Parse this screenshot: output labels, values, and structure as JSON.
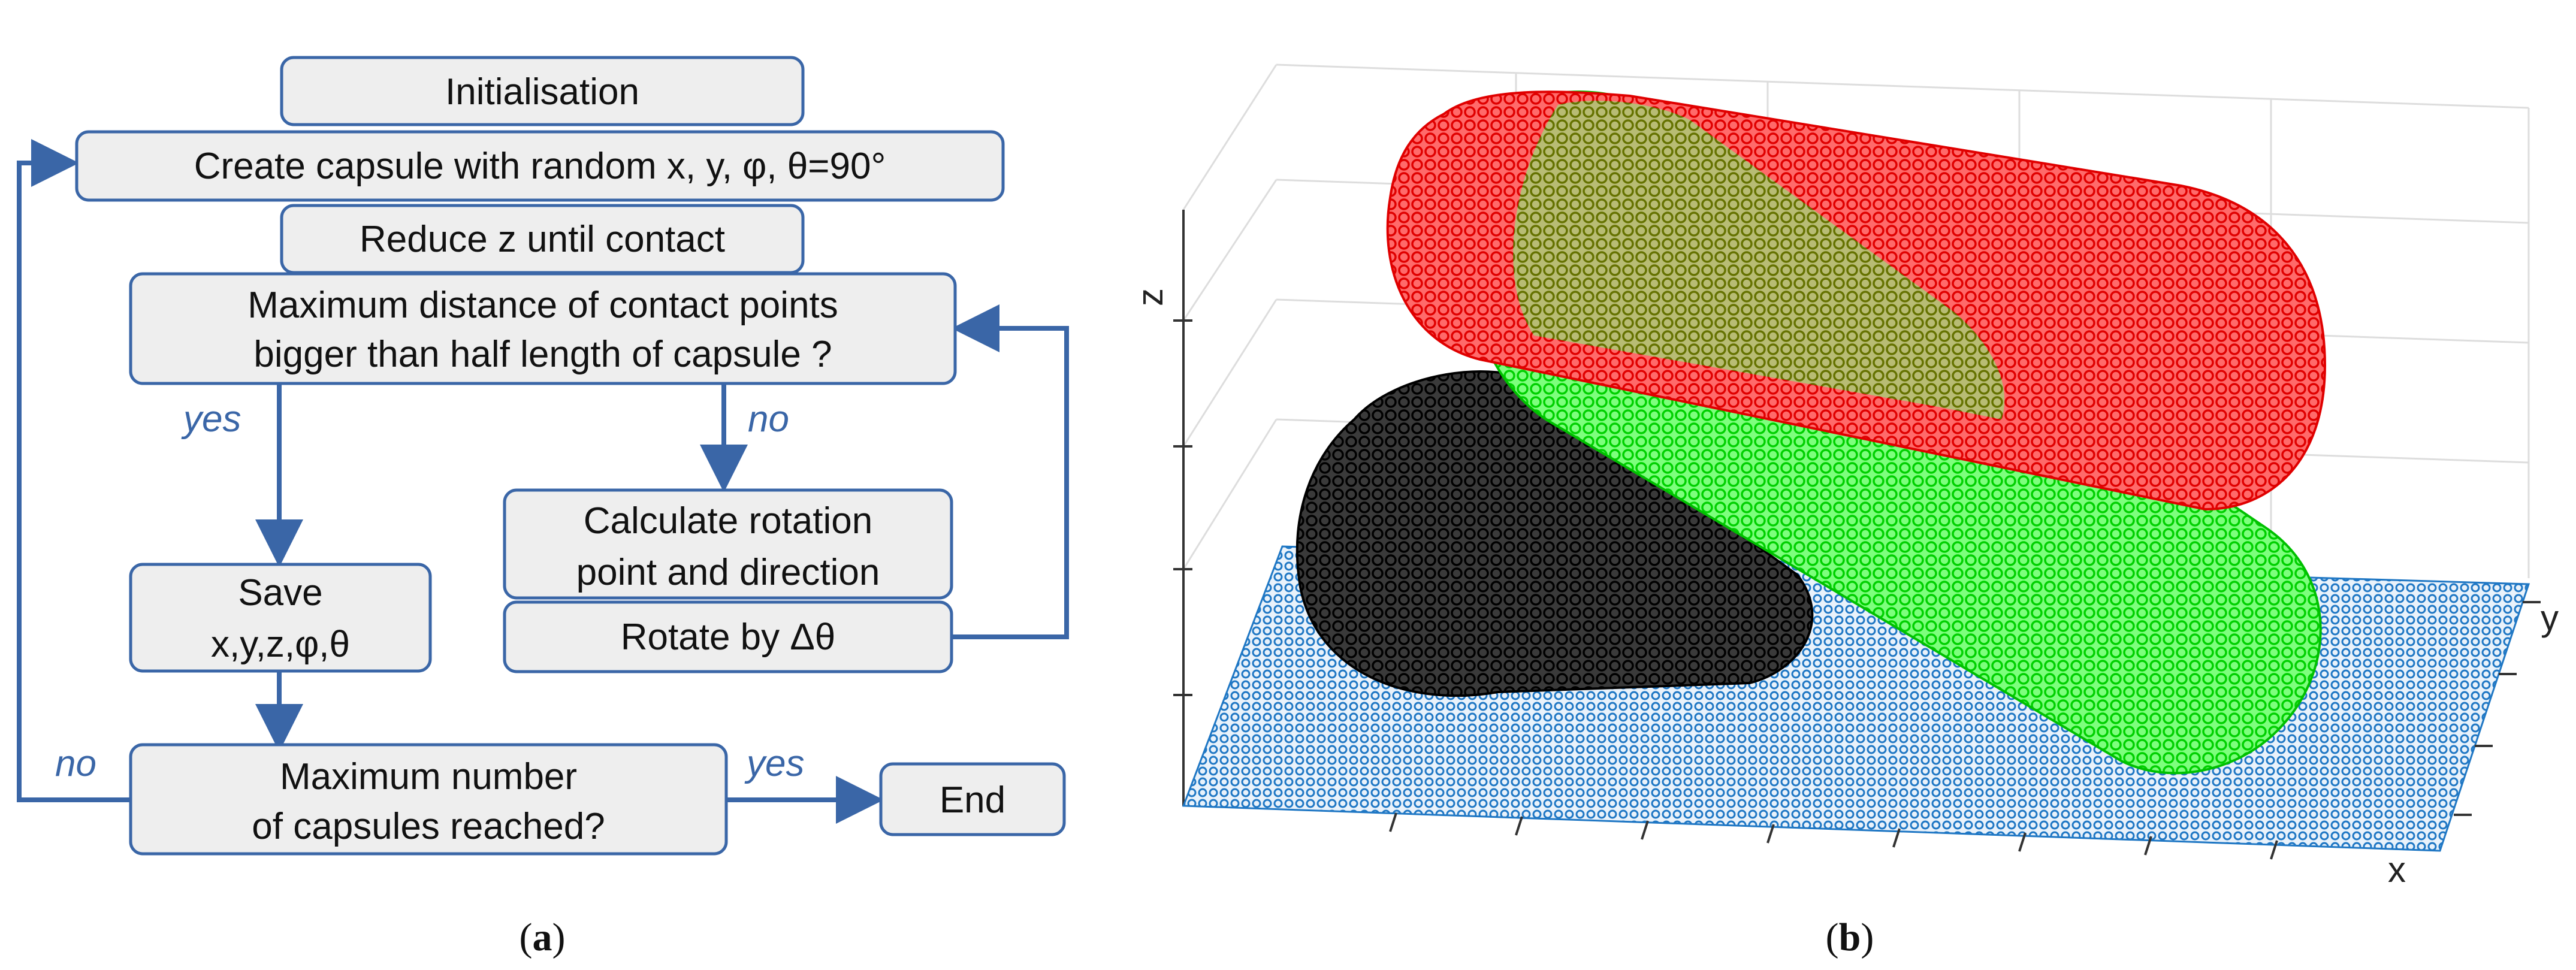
{
  "panel_a": {
    "caption": {
      "open": "(",
      "letter": "a",
      "close": ")"
    },
    "steps": {
      "initialisation": "Initialisation",
      "create": "Create capsule with random x, y, φ, θ=90°",
      "reduce": "Reduce z until contact",
      "maxdist_1": "Maximum distance of contact points",
      "maxdist_2": "bigger than half length of capsule ?",
      "calc_1": "Calculate rotation",
      "calc_2": "point and direction",
      "rotate": "Rotate by Δθ",
      "save_1": "Save",
      "save_2": "x,y,z,φ,θ",
      "maxnum_1": "Maximum number",
      "maxnum_2": "of capsules reached?",
      "end": "End"
    },
    "branches": {
      "yes_left": "yes",
      "no_middle": "no",
      "no_left": "no",
      "yes_right": "yes"
    }
  },
  "panel_b": {
    "caption": {
      "open": "(",
      "letter": "b",
      "close": ")"
    },
    "axes": {
      "x": "x",
      "y": "y",
      "z": "z"
    },
    "colors": {
      "ground": "#1f77c4",
      "capsule_black": "#000000",
      "capsule_green": "#00ff00",
      "capsule_red": "#ff0000",
      "flow": "#3a66a7",
      "box_fill": "#eeeeee"
    }
  }
}
